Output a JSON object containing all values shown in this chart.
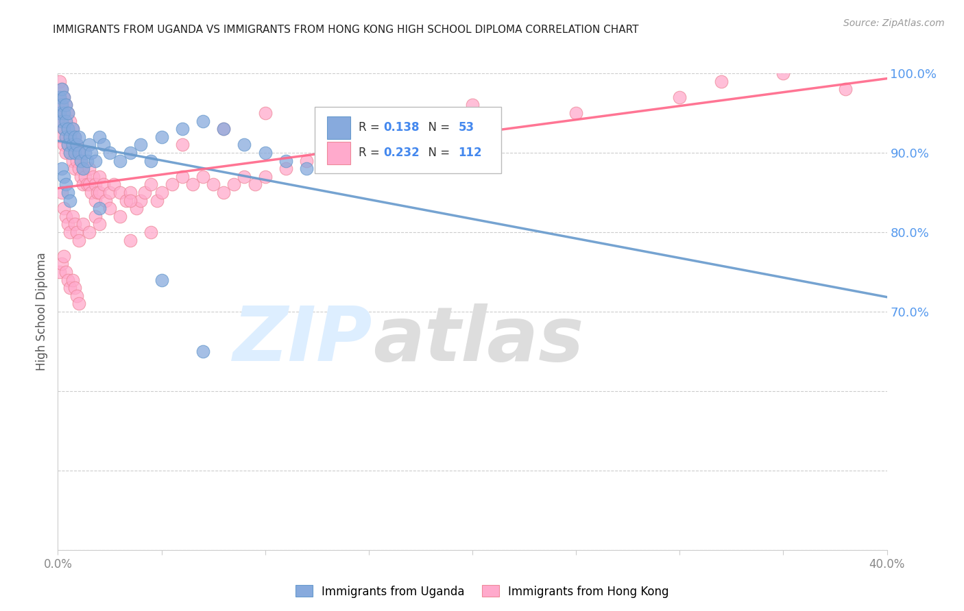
{
  "title": "IMMIGRANTS FROM UGANDA VS IMMIGRANTS FROM HONG KONG HIGH SCHOOL DIPLOMA CORRELATION CHART",
  "source": "Source: ZipAtlas.com",
  "ylabel": "High School Diploma",
  "xlim": [
    0.0,
    0.4
  ],
  "ylim": [
    0.4,
    1.0
  ],
  "xticks": [
    0.0,
    0.05,
    0.1,
    0.15,
    0.2,
    0.25,
    0.3,
    0.35,
    0.4
  ],
  "xticklabels": [
    "0.0%",
    "",
    "",
    "",
    "",
    "",
    "",
    "",
    "40.0%"
  ],
  "yticks": [
    0.4,
    0.5,
    0.6,
    0.7,
    0.8,
    0.9,
    1.0
  ],
  "yticklabels": [
    "",
    "",
    "",
    "70.0%",
    "80.0%",
    "90.0%",
    "100.0%"
  ],
  "uganda_color": "#87AADD",
  "uganda_edge": "#6699CC",
  "hk_color": "#FFAACC",
  "hk_edge": "#EE8899",
  "uganda_R": 0.138,
  "uganda_N": 53,
  "hk_R": 0.232,
  "hk_N": 112,
  "uganda_line_color": "#6699CC",
  "hk_line_color": "#FF6688",
  "legend_label_uganda": "Immigrants from Uganda",
  "legend_label_hk": "Immigrants from Hong Kong",
  "r_color": "#4488EE",
  "n_color": "#4488EE",
  "label_color": "#333333",
  "ytick_color": "#5599EE",
  "xtick_color": "#888888",
  "uganda_x": [
    0.001,
    0.001,
    0.002,
    0.002,
    0.002,
    0.003,
    0.003,
    0.003,
    0.004,
    0.004,
    0.004,
    0.005,
    0.005,
    0.005,
    0.006,
    0.006,
    0.007,
    0.007,
    0.008,
    0.008,
    0.009,
    0.01,
    0.01,
    0.011,
    0.012,
    0.013,
    0.014,
    0.015,
    0.016,
    0.018,
    0.02,
    0.022,
    0.025,
    0.03,
    0.035,
    0.04,
    0.045,
    0.05,
    0.06,
    0.07,
    0.08,
    0.09,
    0.1,
    0.11,
    0.12,
    0.002,
    0.003,
    0.004,
    0.005,
    0.006,
    0.05,
    0.07,
    0.02
  ],
  "uganda_y": [
    0.97,
    0.95,
    0.96,
    0.94,
    0.98,
    0.93,
    0.95,
    0.97,
    0.92,
    0.94,
    0.96,
    0.91,
    0.93,
    0.95,
    0.9,
    0.92,
    0.91,
    0.93,
    0.9,
    0.92,
    0.91,
    0.9,
    0.92,
    0.89,
    0.88,
    0.9,
    0.89,
    0.91,
    0.9,
    0.89,
    0.92,
    0.91,
    0.9,
    0.89,
    0.9,
    0.91,
    0.89,
    0.92,
    0.93,
    0.94,
    0.93,
    0.91,
    0.9,
    0.89,
    0.88,
    0.88,
    0.87,
    0.86,
    0.85,
    0.84,
    0.74,
    0.65,
    0.83
  ],
  "hk_x": [
    0.001,
    0.001,
    0.001,
    0.002,
    0.002,
    0.002,
    0.002,
    0.003,
    0.003,
    0.003,
    0.003,
    0.004,
    0.004,
    0.004,
    0.004,
    0.005,
    0.005,
    0.005,
    0.006,
    0.006,
    0.006,
    0.007,
    0.007,
    0.007,
    0.008,
    0.008,
    0.008,
    0.009,
    0.009,
    0.01,
    0.01,
    0.011,
    0.011,
    0.012,
    0.012,
    0.013,
    0.014,
    0.015,
    0.015,
    0.016,
    0.017,
    0.018,
    0.018,
    0.019,
    0.02,
    0.02,
    0.022,
    0.023,
    0.025,
    0.027,
    0.03,
    0.033,
    0.035,
    0.038,
    0.04,
    0.042,
    0.045,
    0.048,
    0.05,
    0.055,
    0.06,
    0.065,
    0.07,
    0.075,
    0.08,
    0.085,
    0.09,
    0.095,
    0.1,
    0.11,
    0.12,
    0.13,
    0.14,
    0.15,
    0.002,
    0.003,
    0.004,
    0.005,
    0.006,
    0.007,
    0.008,
    0.009,
    0.01,
    0.012,
    0.015,
    0.018,
    0.02,
    0.025,
    0.03,
    0.035,
    0.001,
    0.002,
    0.003,
    0.004,
    0.005,
    0.006,
    0.007,
    0.008,
    0.009,
    0.01,
    0.32,
    0.35,
    0.38,
    0.3,
    0.25,
    0.2,
    0.15,
    0.1,
    0.08,
    0.06,
    0.045,
    0.035
  ],
  "hk_y": [
    0.99,
    0.97,
    0.95,
    0.98,
    0.96,
    0.94,
    0.92,
    0.97,
    0.95,
    0.93,
    0.91,
    0.96,
    0.94,
    0.92,
    0.9,
    0.95,
    0.93,
    0.91,
    0.94,
    0.92,
    0.9,
    0.93,
    0.91,
    0.89,
    0.92,
    0.9,
    0.88,
    0.91,
    0.89,
    0.9,
    0.88,
    0.89,
    0.87,
    0.88,
    0.86,
    0.87,
    0.86,
    0.88,
    0.86,
    0.85,
    0.87,
    0.86,
    0.84,
    0.85,
    0.87,
    0.85,
    0.86,
    0.84,
    0.85,
    0.86,
    0.85,
    0.84,
    0.85,
    0.83,
    0.84,
    0.85,
    0.86,
    0.84,
    0.85,
    0.86,
    0.87,
    0.86,
    0.87,
    0.86,
    0.85,
    0.86,
    0.87,
    0.86,
    0.87,
    0.88,
    0.89,
    0.9,
    0.89,
    0.9,
    0.85,
    0.83,
    0.82,
    0.81,
    0.8,
    0.82,
    0.81,
    0.8,
    0.79,
    0.81,
    0.8,
    0.82,
    0.81,
    0.83,
    0.82,
    0.84,
    0.75,
    0.76,
    0.77,
    0.75,
    0.74,
    0.73,
    0.74,
    0.73,
    0.72,
    0.71,
    0.99,
    1.0,
    0.98,
    0.97,
    0.95,
    0.96,
    0.94,
    0.95,
    0.93,
    0.91,
    0.8,
    0.79
  ]
}
